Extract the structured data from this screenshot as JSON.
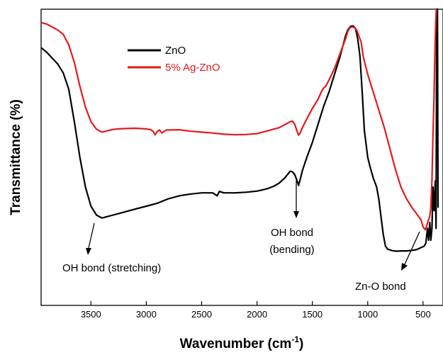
{
  "chart_data": {
    "type": "line",
    "xlabel": "Wavenumber (cm",
    "xlabel_superscript": "-1",
    "xlabel_suffix": ")",
    "ylabel": "Transmittance (%)",
    "xlim": [
      3950,
      320
    ],
    "ylim": [
      0,
      100
    ],
    "x_reversed": true,
    "xticks": [
      3500,
      3000,
      2500,
      2000,
      1500,
      1000,
      500
    ],
    "xtick_labels": [
      "3500",
      "3000",
      "2500",
      "2000",
      "1500",
      "1000",
      "500"
    ],
    "y_tick_labels_shown": false,
    "grid": false,
    "legend_position": "top-left",
    "series": [
      {
        "name": "ZnO",
        "color": "#000000",
        "points": [
          [
            3950,
            87
          ],
          [
            3900,
            85.5
          ],
          [
            3850,
            83.5
          ],
          [
            3800,
            81.5
          ],
          [
            3750,
            78.5
          ],
          [
            3700,
            73
          ],
          [
            3650,
            62
          ],
          [
            3600,
            50
          ],
          [
            3550,
            40
          ],
          [
            3500,
            33.5
          ],
          [
            3450,
            30.5
          ],
          [
            3400,
            29.5
          ],
          [
            3350,
            30
          ],
          [
            3300,
            30.5
          ],
          [
            3250,
            31
          ],
          [
            3200,
            31.5
          ],
          [
            3100,
            32.5
          ],
          [
            3000,
            33.5
          ],
          [
            2900,
            34.5
          ],
          [
            2800,
            36
          ],
          [
            2700,
            37
          ],
          [
            2600,
            37.6
          ],
          [
            2500,
            38
          ],
          [
            2400,
            38
          ],
          [
            2360,
            37
          ],
          [
            2340,
            38.5
          ],
          [
            2300,
            38
          ],
          [
            2200,
            38
          ],
          [
            2100,
            38.2
          ],
          [
            2000,
            38.6
          ],
          [
            1950,
            39
          ],
          [
            1900,
            39.5
          ],
          [
            1850,
            40.2
          ],
          [
            1800,
            41.3
          ],
          [
            1750,
            43
          ],
          [
            1720,
            44.4
          ],
          [
            1700,
            45.3
          ],
          [
            1680,
            45.1
          ],
          [
            1660,
            44.2
          ],
          [
            1640,
            42.3
          ],
          [
            1625,
            40.5
          ],
          [
            1610,
            42.5
          ],
          [
            1590,
            45.5
          ],
          [
            1550,
            50
          ],
          [
            1500,
            55
          ],
          [
            1450,
            61
          ],
          [
            1400,
            67
          ],
          [
            1350,
            72
          ],
          [
            1300,
            78
          ],
          [
            1250,
            84
          ],
          [
            1200,
            91
          ],
          [
            1180,
            93
          ],
          [
            1160,
            94
          ],
          [
            1150,
            94.3
          ],
          [
            1130,
            94.3
          ],
          [
            1110,
            93.5
          ],
          [
            1090,
            90
          ],
          [
            1070,
            84
          ],
          [
            1050,
            72
          ],
          [
            1030,
            59
          ],
          [
            1000,
            50
          ],
          [
            980,
            47
          ],
          [
            950,
            43
          ],
          [
            920,
            40
          ],
          [
            900,
            36
          ],
          [
            880,
            30
          ],
          [
            860,
            24
          ],
          [
            840,
            20
          ],
          [
            820,
            19
          ],
          [
            780,
            18.5
          ],
          [
            740,
            18.3
          ],
          [
            700,
            18.4
          ],
          [
            650,
            18.4
          ],
          [
            600,
            18.6
          ],
          [
            560,
            18.8
          ],
          [
            520,
            19.5
          ],
          [
            490,
            20
          ],
          [
            475,
            21
          ],
          [
            460,
            26
          ],
          [
            450,
            22
          ],
          [
            440,
            28
          ],
          [
            430,
            22
          ],
          [
            420,
            26
          ],
          [
            410,
            40
          ],
          [
            400,
            32
          ],
          [
            390,
            42
          ],
          [
            383,
            26
          ],
          [
            377,
            100
          ],
          [
            370,
            100
          ],
          [
            365,
            33
          ]
        ]
      },
      {
        "name": "5% Ag-ZnO",
        "color": "#e31a1c",
        "points": [
          [
            3950,
            95.5
          ],
          [
            3900,
            95
          ],
          [
            3850,
            94
          ],
          [
            3800,
            93
          ],
          [
            3750,
            91.5
          ],
          [
            3700,
            88
          ],
          [
            3650,
            82
          ],
          [
            3600,
            74
          ],
          [
            3550,
            67
          ],
          [
            3500,
            62
          ],
          [
            3450,
            59.5
          ],
          [
            3400,
            58.5
          ],
          [
            3350,
            59
          ],
          [
            3300,
            59.4
          ],
          [
            3250,
            59.6
          ],
          [
            3200,
            59.7
          ],
          [
            3100,
            59.8
          ],
          [
            3000,
            59.6
          ],
          [
            2960,
            59.3
          ],
          [
            2940,
            58.8
          ],
          [
            2920,
            57.6
          ],
          [
            2900,
            58.8
          ],
          [
            2880,
            59.2
          ],
          [
            2860,
            58.2
          ],
          [
            2845,
            58.6
          ],
          [
            2820,
            59.2
          ],
          [
            2700,
            59.3
          ],
          [
            2600,
            58.8
          ],
          [
            2500,
            58.5
          ],
          [
            2400,
            58.2
          ],
          [
            2300,
            57.8
          ],
          [
            2200,
            57.6
          ],
          [
            2100,
            57.7
          ],
          [
            2000,
            58
          ],
          [
            1900,
            59
          ],
          [
            1800,
            60
          ],
          [
            1750,
            61
          ],
          [
            1700,
            62
          ],
          [
            1680,
            62.2
          ],
          [
            1660,
            61.2
          ],
          [
            1640,
            59
          ],
          [
            1625,
            57.5
          ],
          [
            1610,
            58.2
          ],
          [
            1590,
            60
          ],
          [
            1550,
            63
          ],
          [
            1500,
            66.5
          ],
          [
            1450,
            69.5
          ],
          [
            1420,
            72
          ],
          [
            1400,
            73.3
          ],
          [
            1380,
            74
          ],
          [
            1350,
            76
          ],
          [
            1300,
            80
          ],
          [
            1250,
            85
          ],
          [
            1200,
            90
          ],
          [
            1180,
            92.5
          ],
          [
            1160,
            93.8
          ],
          [
            1140,
            94
          ],
          [
            1120,
            93.8
          ],
          [
            1100,
            93
          ],
          [
            1080,
            91
          ],
          [
            1060,
            89
          ],
          [
            1040,
            84
          ],
          [
            1000,
            78
          ],
          [
            950,
            72
          ],
          [
            900,
            66
          ],
          [
            850,
            60
          ],
          [
            800,
            53
          ],
          [
            750,
            46
          ],
          [
            700,
            40
          ],
          [
            650,
            36
          ],
          [
            600,
            33
          ],
          [
            560,
            31
          ],
          [
            520,
            29
          ],
          [
            500,
            26.5
          ],
          [
            480,
            25.5
          ],
          [
            470,
            26.5
          ],
          [
            455,
            28.5
          ],
          [
            440,
            30
          ],
          [
            430,
            33
          ],
          [
            420,
            42
          ],
          [
            410,
            58
          ],
          [
            400,
            72
          ],
          [
            395,
            82
          ],
          [
            390,
            90
          ],
          [
            385,
            96
          ],
          [
            380,
            100
          ]
        ]
      }
    ],
    "annotations": [
      {
        "text": "OH bond (stretching)",
        "x": 3520
      },
      {
        "text": "OH bond",
        "text2": "(bending)",
        "x": 1625
      },
      {
        "text": "Zn-O bond",
        "x": 560
      }
    ]
  }
}
